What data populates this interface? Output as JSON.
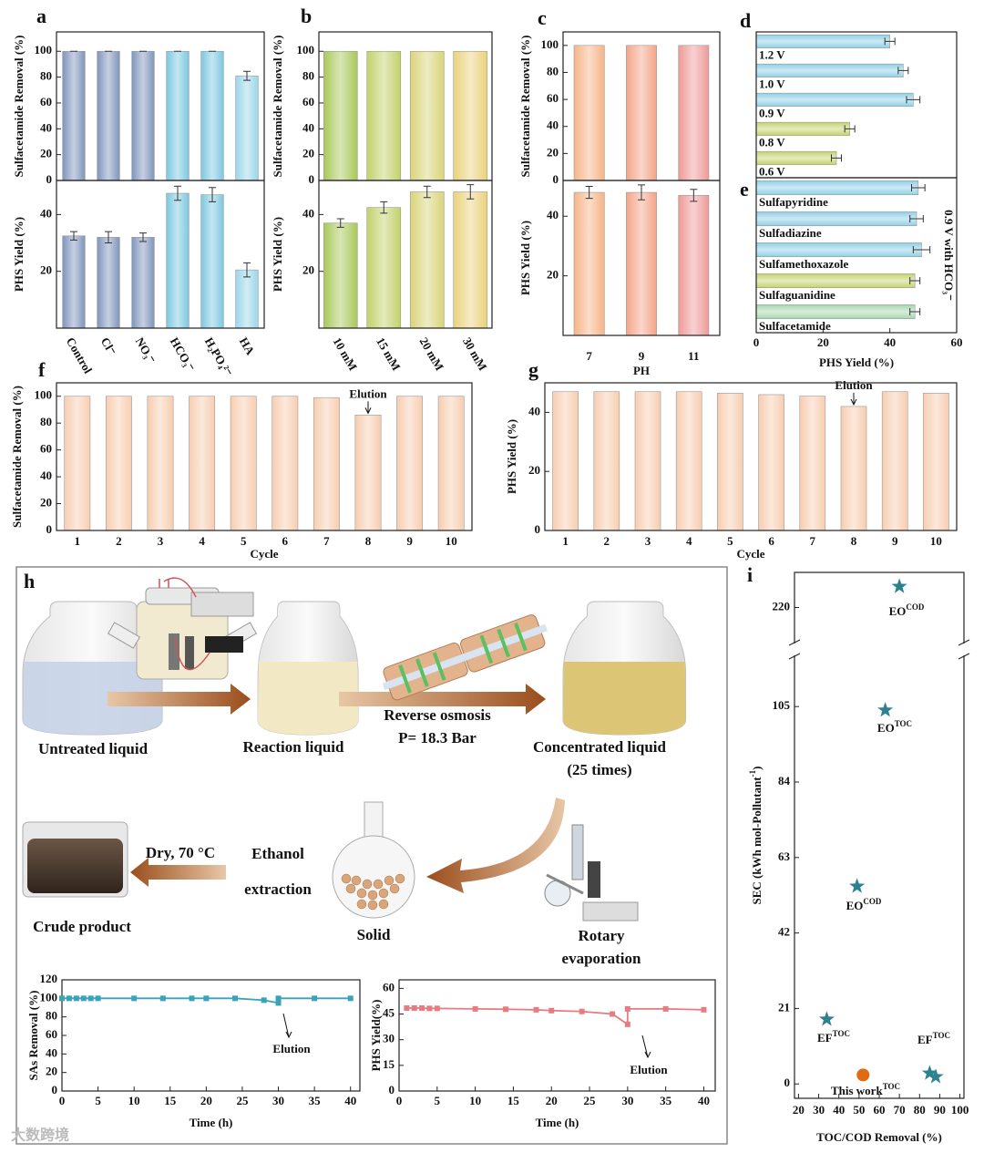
{
  "chart_data": [
    {
      "type": "bar2",
      "panel": "a",
      "categories": [
        "Control",
        "Cl⁻",
        "NO₃⁻",
        "HCO₃⁻",
        "H₂PO₄²⁻",
        "HA"
      ],
      "colors": [
        "#7f95bd",
        "#7f95bd",
        "#7f95bd",
        "#7cc8e0",
        "#7cc8e0",
        "#9ad6ea"
      ],
      "top": {
        "ylabel": "Sulfacetamide Removal (%)",
        "values": [
          100,
          100,
          100,
          100,
          100,
          81
        ],
        "errors": [
          0,
          0,
          0,
          0,
          0,
          3.5
        ],
        "ylim": [
          0,
          115
        ],
        "yticks": [
          0,
          20,
          40,
          60,
          80,
          100
        ]
      },
      "bottom": {
        "ylabel": "PHS Yield (%)",
        "values": [
          32.5,
          32,
          32,
          47.5,
          47,
          20.5
        ],
        "errors": [
          1.5,
          2,
          1.5,
          2.5,
          2.5,
          2.5
        ],
        "ylim": [
          0,
          52
        ],
        "yticks": [
          20,
          40
        ]
      }
    },
    {
      "type": "bar2",
      "panel": "b",
      "categories": [
        "10 mM",
        "15 mM",
        "20 mM",
        "30 mM"
      ],
      "colors": [
        "#a9c85a",
        "#c2d16a",
        "#d9d47a",
        "#ead27c"
      ],
      "top": {
        "ylabel": "Sulfacetamide Removal (%)",
        "values": [
          100,
          100,
          100,
          100
        ],
        "ylim": [
          0,
          115
        ],
        "yticks": [
          0,
          20,
          40,
          60,
          80,
          100
        ]
      },
      "bottom": {
        "ylabel": "PHS Yield (%)",
        "values": [
          37,
          42.5,
          48,
          48
        ],
        "errors": [
          1.5,
          2,
          2,
          2.5
        ],
        "ylim": [
          0,
          52
        ],
        "yticks": [
          20,
          40
        ]
      }
    },
    {
      "type": "bar2",
      "panel": "c",
      "categories": [
        "7",
        "9",
        "11"
      ],
      "xlabel": "PH",
      "colors": [
        "#f6b487",
        "#f4a488",
        "#ee9a98"
      ],
      "top": {
        "ylabel": "Sulfacetamide Removal (%)",
        "values": [
          100,
          100,
          100
        ],
        "ylim": [
          0,
          110
        ],
        "yticks": [
          0,
          20,
          40,
          60,
          80,
          100
        ]
      },
      "bottom": {
        "ylabel": "PHS Yield (%)",
        "values": [
          48,
          48,
          47
        ],
        "errors": [
          2,
          2.5,
          2
        ],
        "ylim": [
          0,
          52
        ],
        "yticks": [
          20,
          40
        ]
      }
    },
    {
      "type": "hbar",
      "panel": "d",
      "categories": [
        "1.2 V",
        "1.0 V",
        "0.9 V",
        "0.8 V",
        "0.6 V"
      ],
      "values": [
        40,
        44,
        47,
        28,
        24
      ],
      "errors": [
        1.5,
        1.5,
        2,
        1.5,
        1.5
      ],
      "colors": [
        "#8fd0e6",
        "#8fd0e6",
        "#8fd0e6",
        "#c5d36c",
        "#c5d36c"
      ],
      "xlim": [
        0,
        60
      ]
    },
    {
      "type": "hbar",
      "panel": "e",
      "categories": [
        "Sulfapyridine",
        "Sulfadiazine",
        "Sulfamethoxazole",
        "Sulfaguanidine",
        "Sulfacetamide"
      ],
      "values": [
        48.5,
        48,
        49.5,
        47.5,
        47.5
      ],
      "errors": [
        2,
        2,
        2.5,
        1.5,
        1.5
      ],
      "colors": [
        "#8fd0e6",
        "#8fd0e6",
        "#8fd0e6",
        "#c5d36c",
        "#a8d6b0"
      ],
      "xlim": [
        0,
        60
      ],
      "xticks": [
        0,
        20,
        40,
        60
      ],
      "xlabel": "PHS Yield (%)",
      "annotation": "0.9 V with HCO₃⁻"
    },
    {
      "type": "bar",
      "panel": "f",
      "categories": [
        "1",
        "2",
        "3",
        "4",
        "5",
        "6",
        "7",
        "8",
        "9",
        "10"
      ],
      "values": [
        100,
        100,
        100,
        100,
        100,
        100,
        99,
        86,
        100,
        100
      ],
      "color": "#f7cdb0",
      "ylim": [
        0,
        110
      ],
      "yticks": [
        0,
        20,
        40,
        60,
        80,
        100
      ],
      "ylabel": "Sulfacetamide Removal (%)",
      "xlabel": "Cycle",
      "annotation": "Elution"
    },
    {
      "type": "bar",
      "panel": "g",
      "categories": [
        "1",
        "2",
        "3",
        "4",
        "5",
        "6",
        "7",
        "8",
        "9",
        "10"
      ],
      "values": [
        47,
        47,
        47,
        47,
        46.5,
        46,
        45.5,
        42,
        47,
        46.5
      ],
      "color": "#f7cdb0",
      "ylim": [
        0,
        50
      ],
      "yticks": [
        0,
        20,
        40
      ],
      "ylabel": "PHS Yield (%)",
      "xlabel": "Cycle",
      "annotation": "Elution"
    },
    {
      "type": "line",
      "x": [
        0,
        1,
        2,
        3,
        4,
        5,
        10,
        14,
        18,
        20,
        24,
        28,
        30,
        30,
        35,
        40
      ],
      "values": [
        100,
        100,
        100,
        100,
        100,
        100,
        100,
        100,
        100,
        100,
        100,
        98,
        95,
        100,
        100,
        100
      ],
      "color": "#3aa3b8",
      "xlim": [
        0,
        41.3
      ],
      "xticks": [
        0,
        5,
        10,
        15,
        20,
        25,
        30,
        35,
        40
      ],
      "ylim": [
        0,
        120
      ],
      "yticks": [
        0,
        20,
        40,
        60,
        80,
        100,
        120
      ],
      "ylabel": "SAs Removal (%)",
      "xlabel": "Time (h)",
      "annotation": "Elution"
    },
    {
      "type": "line",
      "x": [
        1,
        2,
        3,
        4,
        5,
        10,
        14,
        18,
        20,
        24,
        28,
        30,
        30,
        35,
        40
      ],
      "values": [
        48.5,
        48.5,
        48.5,
        48.3,
        48.3,
        48,
        47.8,
        47.5,
        47,
        46.5,
        45,
        39,
        48,
        48,
        47.5
      ],
      "color": "#e87a80",
      "xlim": [
        0,
        41.5
      ],
      "xticks": [
        0,
        5,
        10,
        15,
        20,
        25,
        30,
        35,
        40
      ],
      "ylim": [
        0,
        65
      ],
      "yticks": [
        0,
        15,
        30,
        45,
        60
      ],
      "ylabel": "PHS Yield(%)",
      "xlabel": "Time (h)",
      "annotation": "Elution"
    },
    {
      "type": "scatter",
      "panel": "i",
      "series": [
        {
          "marker": "star",
          "color": "#2e8290",
          "x": [
            70,
            63,
            49,
            34,
            85,
            88
          ],
          "y": [
            226,
            104,
            55,
            18,
            3,
            2
          ]
        },
        {
          "marker": "circle",
          "color": "#e06b12",
          "x": [
            52
          ],
          "y": [
            2.5
          ]
        }
      ],
      "labels": [
        {
          "text": "EO",
          "sup": "COD"
        },
        {
          "text": "EO",
          "sup": "TOC"
        },
        {
          "text": "EO",
          "sup": "COD"
        },
        {
          "text": "EF",
          "sup": "TOC"
        },
        {
          "text": "EF",
          "sup": "TOC"
        },
        {
          "text": "This work",
          "sup": "TOC"
        }
      ],
      "xlim": [
        18,
        102
      ],
      "xticks": [
        20,
        30,
        40,
        50,
        60,
        70,
        80,
        90,
        100
      ],
      "ylim": [
        -4,
        230
      ],
      "ybreak": [
        119,
        210
      ],
      "yticks": [
        0,
        21,
        42,
        63,
        84,
        105,
        220
      ],
      "ylabel": {
        "text": "SEC (kWh mol-Pollutant",
        "sup": "-1",
        "tail": ")"
      },
      "xlabel": "TOC/COD Removal (%)"
    }
  ],
  "diagram": {
    "panel": "h",
    "labels": [
      "Untreated  liquid",
      "Reaction liquid",
      "Reverse osmosis",
      "P= 18.3 Bar",
      "Concentrated liquid",
      "(25 times)",
      "Dry, 70 °C",
      "Ethanol",
      "extraction",
      "Crude product",
      "Solid",
      "Rotary",
      "evaporation"
    ]
  },
  "watermark": "大数跨境"
}
